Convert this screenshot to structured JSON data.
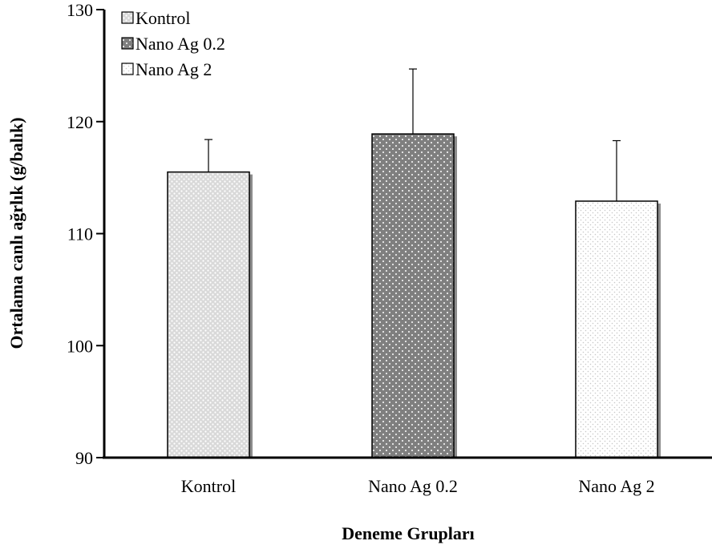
{
  "chart_data": {
    "type": "bar",
    "title": "",
    "xlabel": "Deneme Grupları",
    "ylabel": "Ortalama canlı ağrlık (g/balık)",
    "ylim": [
      90,
      130
    ],
    "yticks": [
      90,
      100,
      110,
      120,
      130
    ],
    "categories": [
      "Kontrol",
      "Nano Ag 0.2",
      "Nano Ag 2"
    ],
    "values": [
      115.5,
      118.9,
      112.9
    ],
    "error": [
      2.9,
      5.8,
      5.4
    ],
    "legend": {
      "placement": "top-left",
      "entries": [
        "Kontrol",
        "Nano Ag 0.2",
        "Nano Ag 2"
      ]
    },
    "grid": false,
    "colors": {
      "bar_fills": [
        "#d9d9d9",
        "#7f7f7f",
        "#f2f2f2"
      ],
      "dot_colors": [
        "#ffffff",
        "#ffffff",
        "#bfbfbf"
      ],
      "axis": "#000000"
    }
  }
}
